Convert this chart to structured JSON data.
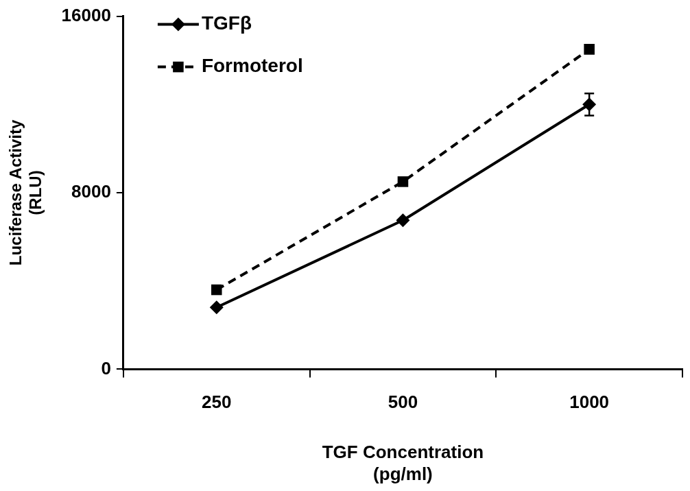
{
  "chart_data": {
    "type": "line",
    "xlabel": "TGF Concentration\n(pg/ml)",
    "ylabel": "Luciferase Activity\n(RLU)",
    "categories": [
      "250",
      "500",
      "1000"
    ],
    "ylim": [
      0,
      16000
    ],
    "yticks": [
      0,
      8000,
      16000
    ],
    "grid": false,
    "legend": "top left",
    "series": [
      {
        "name": "TGFβ",
        "color": "#000000",
        "marker": "diamond",
        "line_style": "solid",
        "values": [
          2800,
          6750,
          12000
        ],
        "errors": [
          null,
          null,
          500
        ]
      },
      {
        "name": "Formoterol",
        "color": "#000000",
        "marker": "square",
        "line_style": "dashed",
        "values": [
          3600,
          8500,
          14500
        ]
      }
    ]
  }
}
